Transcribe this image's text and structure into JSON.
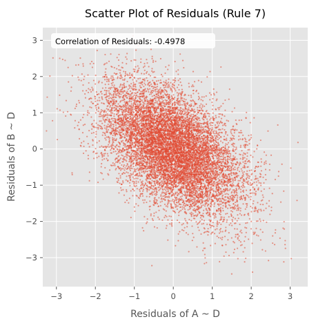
{
  "chart_data": {
    "type": "scatter",
    "title": "Scatter Plot of Residuals (Rule 7)",
    "xlabel": "Residuals of A ~ D",
    "ylabel": "Residuals of B ~ D",
    "xlim": [
      -3.35,
      3.45
    ],
    "ylim": [
      -3.8,
      3.35
    ],
    "xticks": [
      -3,
      -2,
      -1,
      0,
      1,
      2,
      3
    ],
    "yticks": [
      -3,
      -2,
      -1,
      0,
      1,
      2,
      3
    ],
    "tick_labels_x": [
      "−3",
      "−2",
      "−1",
      "0",
      "1",
      "2",
      "3"
    ],
    "tick_labels_y": [
      "−3",
      "−2",
      "−1",
      "0",
      "1",
      "2",
      "3"
    ],
    "grid": true,
    "style": "ggplot",
    "annotation": "Correlation of Residuals: -0.4978",
    "correlation": -0.4978,
    "point_color": "#E24A33",
    "background_color": "#E5E5E5",
    "point_count_estimate": 10000,
    "notable_points": [
      {
        "x": -3.1,
        "y": 0.78
      },
      {
        "x": 3.2,
        "y": 0.18
      },
      {
        "x": -0.55,
        "y": -3.22
      },
      {
        "x": 1.5,
        "y": -3.45
      },
      {
        "x": -1.65,
        "y": 3.05
      },
      {
        "x": 2.7,
        "y": -0.75
      },
      {
        "x": -2.7,
        "y": 2.25
      },
      {
        "x": 2.55,
        "y": -2.6
      }
    ]
  }
}
